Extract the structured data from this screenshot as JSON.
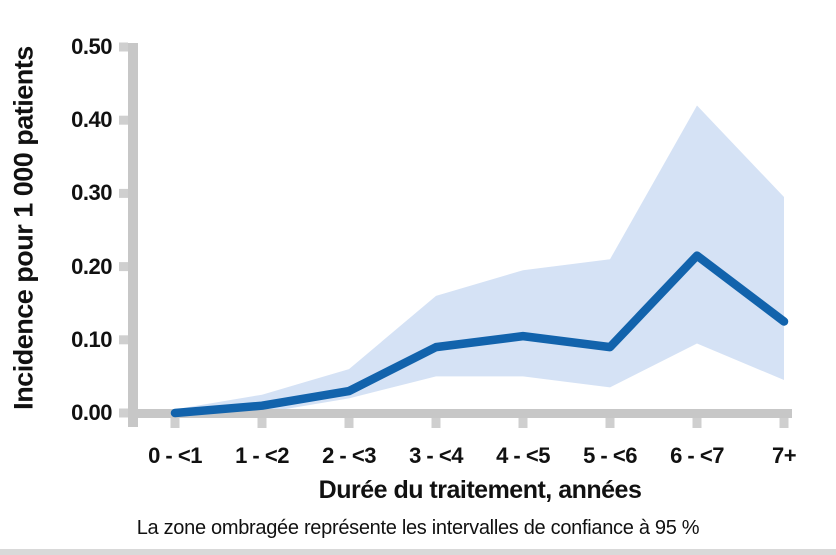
{
  "colors": {
    "line": "#1263ac",
    "band": "#d5e2f5",
    "axis": "#c7c7c7",
    "tick": "#cfcfcf",
    "text": "#111111",
    "footer_bar": "#d9d9d9"
  },
  "chart_data": {
    "type": "line",
    "categories": [
      "0 - <1",
      "1 - <2",
      "2 - <3",
      "3 - <4",
      "4 - <5",
      "5 - <6",
      "6 - <7",
      "7+"
    ],
    "series": [
      {
        "name": "incidence",
        "values": [
          0.0,
          0.01,
          0.03,
          0.09,
          0.105,
          0.09,
          0.215,
          0.125
        ]
      },
      {
        "name": "ic95_sup",
        "values": [
          0.005,
          0.025,
          0.06,
          0.16,
          0.195,
          0.21,
          0.42,
          0.295
        ]
      },
      {
        "name": "ic95_inf",
        "values": [
          0.0,
          0.0,
          0.02,
          0.05,
          0.05,
          0.035,
          0.095,
          0.045
        ]
      }
    ],
    "xlabel": "Durée du traitement, années",
    "ylabel": "Incidence pour 1 000 patients",
    "ytick_labels": [
      "0.00",
      "0.10",
      "0.20",
      "0.30",
      "0.40",
      "0.50"
    ],
    "ytick_values": [
      0,
      0.1,
      0.2,
      0.3,
      0.4,
      0.5
    ],
    "ylim": [
      0,
      0.5
    ],
    "grid": false,
    "legend": false,
    "caption": "La zone ombragée représente les intervalles de confiance à 95 %"
  }
}
